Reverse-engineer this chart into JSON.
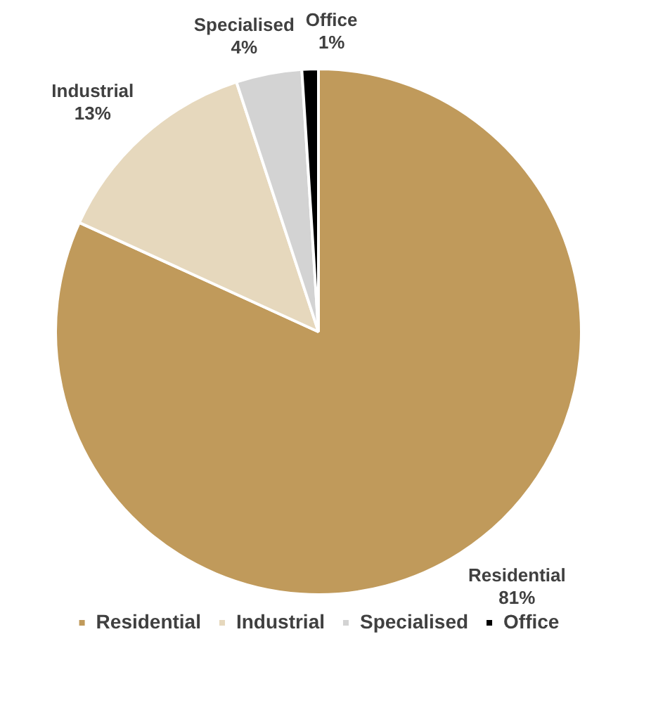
{
  "chart_data": {
    "type": "pie",
    "categories": [
      "Residential",
      "Industrial",
      "Specialised",
      "Office"
    ],
    "values": [
      81,
      13,
      4,
      1
    ],
    "value_labels": [
      "81%",
      "13%",
      "4%",
      "1%"
    ],
    "colors": [
      "#c09a5b",
      "#e6d8bd",
      "#d3d3d3",
      "#000000"
    ],
    "legend": "bottom"
  }
}
